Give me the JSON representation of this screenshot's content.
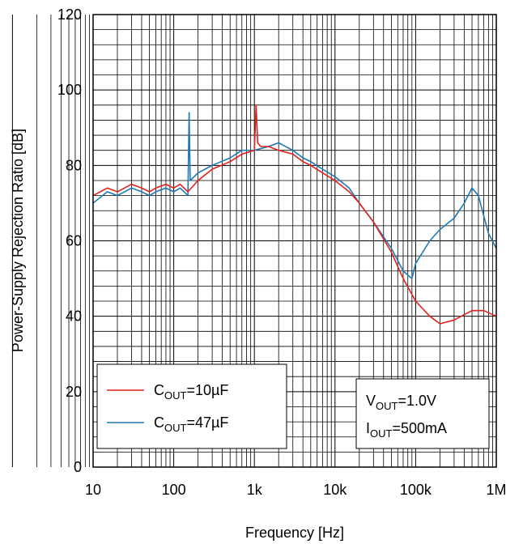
{
  "chart_data": {
    "type": "line",
    "xlabel": "Frequency [Hz]",
    "ylabel": "Power-Supply Rejection Ratio [dB]",
    "x_scale": "log",
    "xlim": [
      10,
      1000000
    ],
    "ylim": [
      0,
      120
    ],
    "x_ticks": [
      10,
      100,
      1000,
      10000,
      100000,
      1000000
    ],
    "x_tick_labels": [
      "10",
      "100",
      "1k",
      "10k",
      "100k",
      "1M"
    ],
    "y_ticks": [
      0,
      20,
      40,
      60,
      80,
      100,
      120
    ],
    "y_tick_labels": [
      "0",
      "20",
      "40",
      "60",
      "80",
      "100",
      "120"
    ],
    "grid": true,
    "legend_position": "bottom-left",
    "legend": [
      {
        "base": "C",
        "sub": "OUT",
        "tail": "=10µF",
        "color": "#e3211c"
      },
      {
        "base": "C",
        "sub": "OUT",
        "tail": "=47µF",
        "color": "#1f78b4"
      }
    ],
    "conditions": [
      {
        "base": "V",
        "sub": "OUT",
        "tail": "=1.0V"
      },
      {
        "base": "I",
        "sub": "OUT",
        "tail": "=500mA"
      }
    ],
    "series": [
      {
        "color": "#e3211c",
        "x": [
          10,
          15,
          20,
          30,
          40,
          50,
          60,
          80,
          100,
          120,
          150,
          200,
          300,
          500,
          700,
          1000,
          1050,
          1100,
          1200,
          1500,
          2000,
          3000,
          4000,
          5000,
          7000,
          10000,
          15000,
          20000,
          30000,
          50000,
          70000,
          100000,
          150000,
          200000,
          300000,
          500000,
          700000,
          1000000
        ],
        "y": [
          72,
          74,
          73,
          75,
          74,
          73,
          74,
          75,
          74,
          75,
          73,
          76,
          79,
          81,
          83,
          84,
          96,
          86,
          85,
          85,
          84,
          83,
          81,
          80,
          78,
          76,
          73,
          70,
          65,
          57,
          50,
          44,
          40,
          38,
          39,
          41.5,
          41.5,
          40
        ]
      },
      {
        "color": "#1f78b4",
        "x": [
          10,
          15,
          20,
          30,
          40,
          50,
          60,
          80,
          100,
          120,
          150,
          155,
          160,
          200,
          300,
          500,
          700,
          1000,
          1500,
          2000,
          3000,
          4000,
          5000,
          7000,
          10000,
          15000,
          20000,
          30000,
          50000,
          70000,
          90000,
          100000,
          150000,
          200000,
          300000,
          400000,
          500000,
          600000,
          800000,
          1000000
        ],
        "y": [
          70,
          73,
          72,
          74,
          73,
          72,
          73,
          74,
          73,
          74,
          72,
          94,
          76,
          78,
          80,
          82,
          84,
          84,
          85,
          86,
          84,
          82,
          81,
          79,
          77,
          74,
          70,
          65,
          58,
          52,
          50,
          54,
          60,
          63,
          66,
          70,
          74,
          72,
          62,
          58
        ]
      }
    ]
  }
}
